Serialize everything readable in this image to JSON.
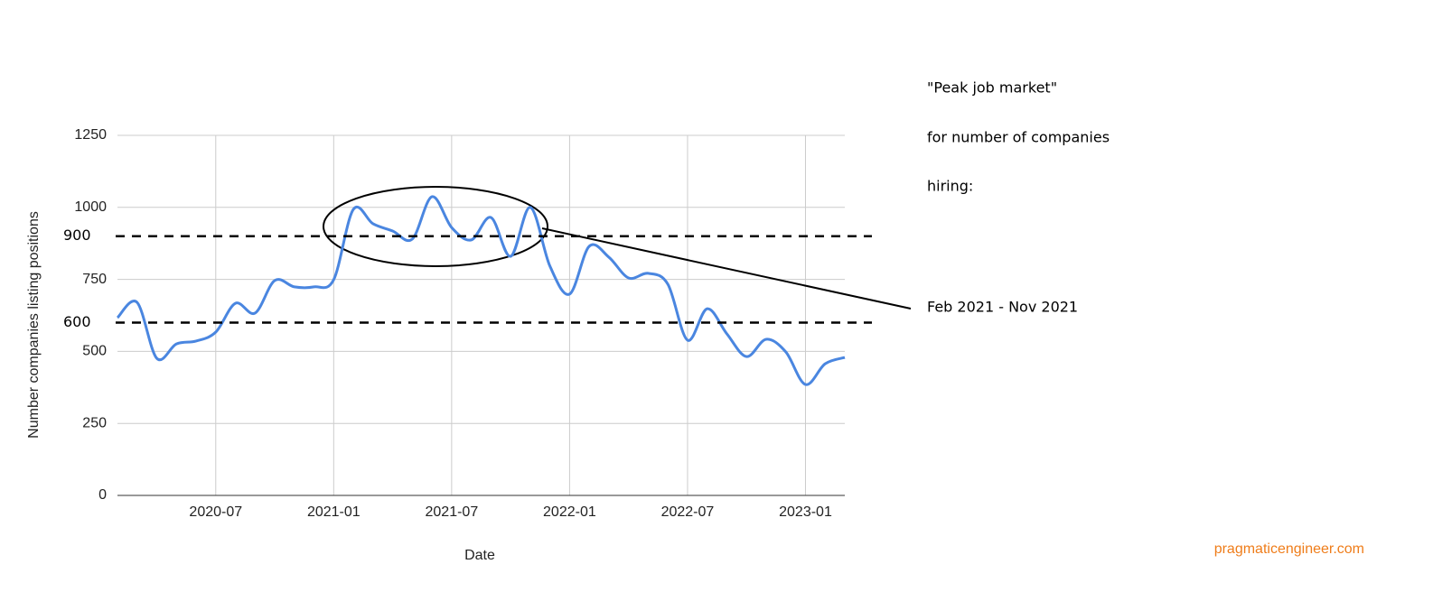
{
  "chart_data": {
    "type": "line",
    "x_label": "Date",
    "y_label": "Number companies listing positions",
    "x": [
      "2020-02",
      "2020-03",
      "2020-04",
      "2020-05",
      "2020-06",
      "2020-07",
      "2020-08",
      "2020-09",
      "2020-10",
      "2020-11",
      "2020-12",
      "2021-01",
      "2021-02",
      "2021-03",
      "2021-04",
      "2021-05",
      "2021-06",
      "2021-07",
      "2021-08",
      "2021-09",
      "2021-10",
      "2021-11",
      "2021-12",
      "2022-01",
      "2022-02",
      "2022-03",
      "2022-04",
      "2022-05",
      "2022-06",
      "2022-07",
      "2022-08",
      "2022-09",
      "2022-10",
      "2022-11",
      "2022-12",
      "2023-01",
      "2023-02",
      "2023-03"
    ],
    "series": [
      {
        "color": "#4a86e0",
        "values": [
          617,
          670,
          476,
          526,
          536,
          567,
          667,
          633,
          746,
          724,
          724,
          749,
          993,
          943,
          918,
          890,
          1037,
          930,
          887,
          965,
          830,
          1000,
          796,
          699,
          865,
          827,
          755,
          771,
          733,
          539,
          648,
          561,
          482,
          542,
          498,
          385,
          457,
          479
        ]
      }
    ],
    "xlim": [
      "2020-02",
      "2023-03"
    ],
    "xticks": [
      "2020-07",
      "2021-01",
      "2021-07",
      "2022-01",
      "2022-07",
      "2023-01"
    ],
    "ylim": [
      0,
      1250
    ],
    "yticks": [
      0,
      250,
      500,
      750,
      1000,
      1250
    ],
    "grid": true,
    "reference_lines": [
      900,
      600
    ],
    "annotations": [
      "\"Peak job market\"",
      "for number of companies",
      "hiring:",
      "Feb 2021 - Nov 2021"
    ],
    "credit": "pragmaticengineer.com"
  }
}
